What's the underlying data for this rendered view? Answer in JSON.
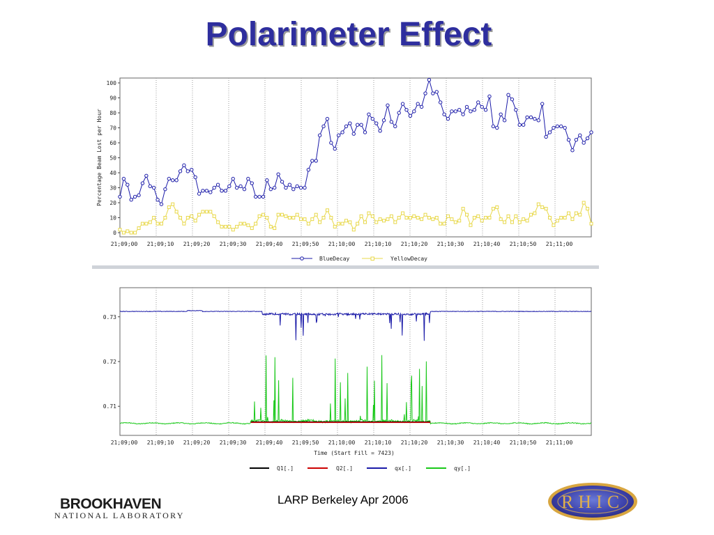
{
  "slide": {
    "title": "Polarimeter Effect",
    "footer": "LARP Berkeley  Apr 2006",
    "logo_left": {
      "top": "BROOKHAVEN",
      "bottom": "NATIONAL LABORATORY"
    },
    "logo_right": {
      "text": "RHIC"
    }
  },
  "colors": {
    "title": "#2e2e9e",
    "blue": "#1a1aa8",
    "yellow": "#e8d84a",
    "green": "#18c818",
    "red": "#cc0000",
    "black": "#000000"
  },
  "chart_data": [
    {
      "type": "line",
      "ylabel": "Percentage Beam Lost per Hour",
      "xlabel": "",
      "ylim": [
        0,
        100
      ],
      "yticks": [
        "0",
        "10",
        "20",
        "30",
        "40",
        "50",
        "60",
        "70",
        "80",
        "90",
        "100"
      ],
      "xtick_labels": [
        "21;09;00",
        "21;09;10",
        "21;09;20",
        "21;09;30",
        "21;09;40",
        "21;09;50",
        "21;10;00",
        "21;10;10",
        "21;10;20",
        "21;10;30",
        "21;10;40",
        "21;10;50",
        "21;11;00"
      ],
      "xrange_seconds": [
        0,
        126
      ],
      "grid": "vertical dotted",
      "legend_position": "bottom",
      "series": [
        {
          "name": "BlueDecay",
          "color": "#1a1aa8",
          "marker": "circle",
          "values": [
            24,
            36,
            32,
            22,
            24,
            25,
            33,
            38,
            31,
            30,
            22,
            19,
            29,
            36,
            35,
            35,
            41,
            45,
            41,
            42,
            37,
            26,
            28,
            28,
            27,
            30,
            32,
            28,
            28,
            31,
            36,
            30,
            31,
            29,
            36,
            33,
            24,
            24,
            24,
            35,
            29,
            30,
            39,
            34,
            30,
            32,
            29,
            31,
            30,
            30,
            42,
            48,
            48,
            65,
            71,
            76,
            60,
            56,
            65,
            67,
            71,
            73,
            66,
            72,
            72,
            67,
            79,
            76,
            73,
            68,
            75,
            85,
            74,
            71,
            80,
            86,
            82,
            78,
            81,
            86,
            84,
            93,
            102,
            93,
            94,
            87,
            79,
            76,
            81,
            81,
            82,
            79,
            84,
            81,
            82,
            87,
            84,
            82,
            91,
            71,
            70,
            79,
            75,
            92,
            89,
            82,
            72,
            72,
            77,
            77,
            76,
            75,
            86,
            64,
            67,
            70,
            71,
            71,
            70,
            62,
            55,
            62,
            65,
            60,
            63,
            67
          ]
        },
        {
          "name": "YellowDecay",
          "color": "#e8d84a",
          "marker": "square",
          "values": [
            2,
            0,
            1,
            0,
            0,
            3,
            6,
            6,
            7,
            10,
            6,
            6,
            10,
            17,
            19,
            14,
            10,
            6,
            10,
            11,
            8,
            12,
            14,
            14,
            14,
            11,
            7,
            4,
            4,
            4,
            2,
            4,
            6,
            6,
            5,
            3,
            6,
            11,
            12,
            10,
            4,
            3,
            12,
            12,
            11,
            10,
            10,
            12,
            9,
            9,
            6,
            9,
            12,
            7,
            10,
            15,
            10,
            4,
            6,
            6,
            8,
            7,
            2,
            6,
            11,
            7,
            13,
            11,
            7,
            9,
            8,
            9,
            11,
            7,
            10,
            13,
            10,
            10,
            11,
            10,
            9,
            12,
            10,
            9,
            10,
            6,
            6,
            11,
            9,
            7,
            8,
            16,
            12,
            5,
            10,
            11,
            8,
            10,
            10,
            16,
            17,
            9,
            7,
            11,
            7,
            11,
            7,
            9,
            8,
            12,
            13,
            19,
            17,
            16,
            10,
            5,
            8,
            10,
            10,
            13,
            9,
            13,
            12,
            20,
            16,
            6
          ]
        }
      ]
    },
    {
      "type": "line",
      "xlabel": "Time (Start Fill = 7423)",
      "ylabel": "",
      "yticks": [
        "0.71",
        "0.72",
        "0.73"
      ],
      "ylim": [
        0.7035,
        0.7365
      ],
      "xtick_labels": [
        "21;09;00",
        "21;09;10",
        "21;09;20",
        "21;09;30",
        "21;09;40",
        "21;09;50",
        "21;10;00",
        "21;10;10",
        "21;10;20",
        "21;10;30",
        "21;10;40",
        "21;10;50",
        "21;11;00"
      ],
      "xrange_seconds": [
        0,
        126
      ],
      "grid": "vertical dotted",
      "legend_position": "bottom",
      "series": [
        {
          "name": "Q1[.]",
          "color": "#000000"
        },
        {
          "name": "Q2[.]",
          "color": "#cc0000"
        },
        {
          "name": "qx[.]",
          "color": "#1a1aa8",
          "baseline": 0.7312,
          "noisy_interval_seconds": [
            38,
            83
          ],
          "min_spikes": 0.7245
        },
        {
          "name": "qy[.]",
          "color": "#18c818",
          "baseline": 0.7062,
          "noisy_interval_seconds": [
            35,
            83
          ],
          "max_spikes": 0.7225
        }
      ]
    }
  ]
}
